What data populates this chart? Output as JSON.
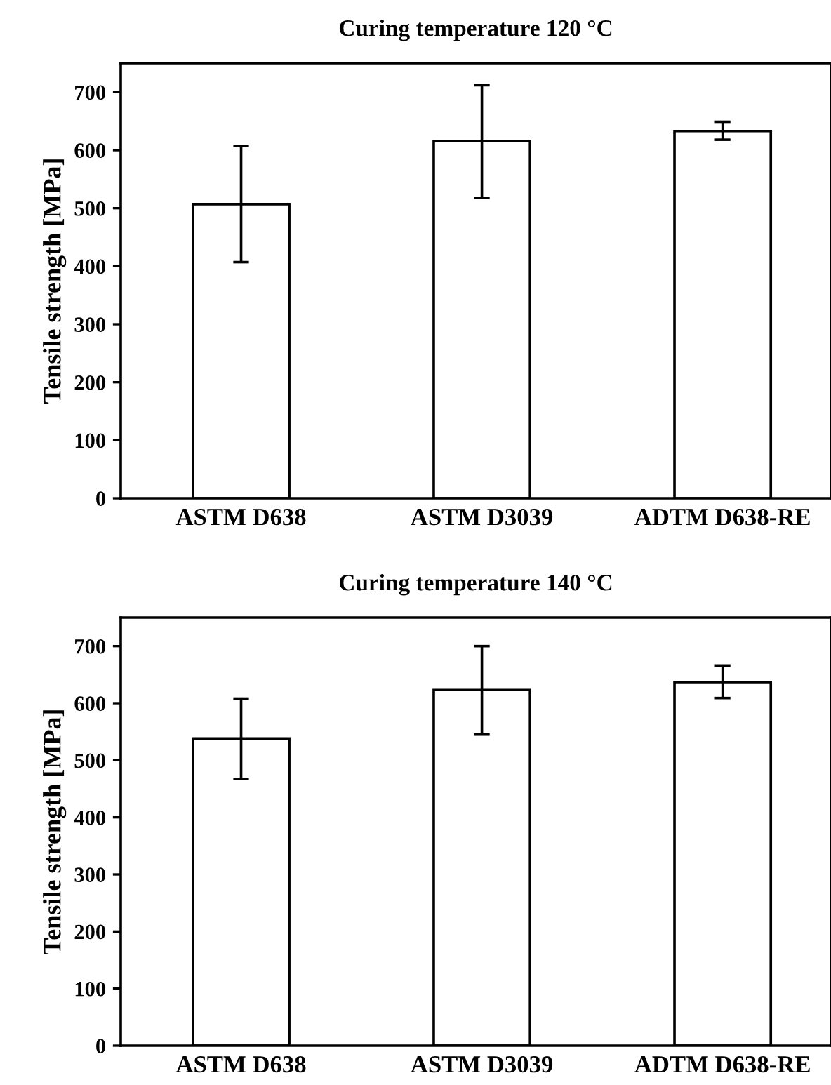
{
  "chart_data": [
    {
      "type": "bar",
      "title": "Curing temperature 120 °C",
      "ylabel": "Tensile strength [MPa]",
      "categories": [
        "ASTM D638",
        "ASTM D3039",
        "ADTM D638-RE"
      ],
      "values": [
        507,
        616,
        633
      ],
      "errors": [
        [
          407,
          607
        ],
        [
          518,
          712
        ],
        [
          618,
          649
        ]
      ],
      "color": "#ffffff",
      "ylim": [
        0,
        750
      ],
      "yticks": [
        0,
        100,
        200,
        300,
        400,
        500,
        600,
        700
      ],
      "grid": false,
      "legend": false
    },
    {
      "type": "bar",
      "title": "Curing temperature 140 °C",
      "ylabel": "Tensile strength [MPa]",
      "categories": [
        "ASTM D638",
        "ASTM D3039",
        "ADTM D638-RE"
      ],
      "values": [
        538,
        623,
        637
      ],
      "errors": [
        [
          467,
          608
        ],
        [
          545,
          700
        ],
        [
          609,
          666
        ]
      ],
      "color": "#ffffff",
      "ylim": [
        0,
        750
      ],
      "yticks": [
        0,
        100,
        200,
        300,
        400,
        500,
        600,
        700
      ],
      "grid": false,
      "legend": false
    }
  ]
}
